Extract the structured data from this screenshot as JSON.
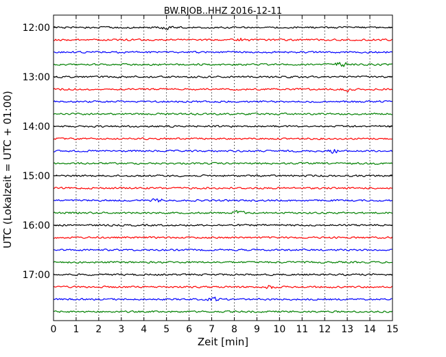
{
  "chart_data": {
    "type": "line",
    "title": "BW.RJOB..HHZ 2016-12-11",
    "xlabel": "Zeit  [min]",
    "ylabel": "UTC (Lokalzeit = UTC + 01:00)",
    "xlim": [
      0,
      15
    ],
    "x_ticks": [
      "0",
      "1",
      "2",
      "3",
      "4",
      "5",
      "6",
      "7",
      "8",
      "9",
      "10",
      "11",
      "12",
      "13",
      "14",
      "15"
    ],
    "y_tick_labels": [
      "12:00",
      "13:00",
      "14:00",
      "15:00",
      "16:00",
      "17:00"
    ],
    "rows_per_hour": 4,
    "row_count": 24,
    "colors_cycle": [
      "#000000",
      "#ff0000",
      "#0000ff",
      "#008000"
    ],
    "grid": "vertical dotted lines at each minute",
    "series": [
      {
        "start": "12:00",
        "color": "#000000"
      },
      {
        "start": "12:15",
        "color": "#ff0000"
      },
      {
        "start": "12:30",
        "color": "#0000ff"
      },
      {
        "start": "12:45",
        "color": "#008000"
      },
      {
        "start": "13:00",
        "color": "#000000"
      },
      {
        "start": "13:15",
        "color": "#ff0000"
      },
      {
        "start": "13:30",
        "color": "#0000ff"
      },
      {
        "start": "13:45",
        "color": "#008000"
      },
      {
        "start": "14:00",
        "color": "#000000"
      },
      {
        "start": "14:15",
        "color": "#ff0000"
      },
      {
        "start": "14:30",
        "color": "#0000ff"
      },
      {
        "start": "14:45",
        "color": "#008000"
      },
      {
        "start": "15:00",
        "color": "#000000"
      },
      {
        "start": "15:15",
        "color": "#ff0000"
      },
      {
        "start": "15:30",
        "color": "#0000ff"
      },
      {
        "start": "15:45",
        "color": "#008000"
      },
      {
        "start": "16:00",
        "color": "#000000"
      },
      {
        "start": "16:15",
        "color": "#ff0000"
      },
      {
        "start": "16:30",
        "color": "#0000ff"
      },
      {
        "start": "16:45",
        "color": "#008000"
      },
      {
        "start": "17:00",
        "color": "#000000"
      },
      {
        "start": "17:15",
        "color": "#ff0000"
      },
      {
        "start": "17:30",
        "color": "#0000ff"
      },
      {
        "start": "17:45",
        "color": "#008000"
      }
    ]
  }
}
